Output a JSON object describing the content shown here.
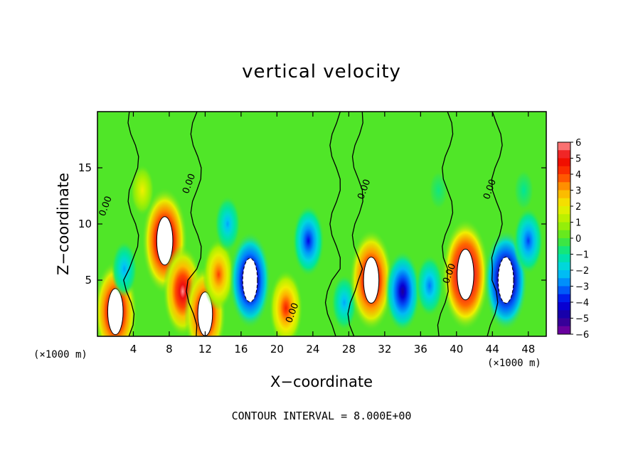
{
  "chart_data": {
    "type": "heatmap",
    "title": "vertical velocity",
    "xlabel": "X−coordinate",
    "ylabel": "Z−coordinate",
    "x_unit": "(×1000 m)",
    "footer": "CONTOUR INTERVAL = 8.000E+00",
    "xlim": [
      0,
      50
    ],
    "ylim": [
      0,
      20
    ],
    "x_ticks": [
      "4",
      "8",
      "12",
      "16",
      "20",
      "24",
      "28",
      "32",
      "36",
      "40",
      "44",
      "48"
    ],
    "y_ticks": [
      "5",
      "10",
      "15"
    ],
    "colorbar": {
      "min": -6,
      "max": 6,
      "ticks": [
        "6",
        "5",
        "4",
        "3",
        "2",
        "1",
        "0",
        "−1",
        "−2",
        "−3",
        "−4",
        "−5",
        "−6"
      ]
    },
    "contour_labels": [
      "0.00",
      "0.00",
      "0.00",
      "0.00",
      "0.00",
      "0.00"
    ],
    "features": [
      {
        "x": 2,
        "z": 2.2,
        "w": 7
      },
      {
        "x": 7.5,
        "z": 8.5,
        "w": 7.5
      },
      {
        "x": 9.5,
        "z": 4,
        "w": 6
      },
      {
        "x": 12,
        "z": 2,
        "w": 6.5
      },
      {
        "x": 13.5,
        "z": 5.5,
        "w": 4
      },
      {
        "x": 17,
        "z": 5,
        "w": -6.5
      },
      {
        "x": 21,
        "z": 2.5,
        "w": 4.5
      },
      {
        "x": 14.5,
        "z": 10,
        "w": -2.5
      },
      {
        "x": 23.5,
        "z": 8.5,
        "w": -4
      },
      {
        "x": 27.5,
        "z": 3,
        "w": -2.5
      },
      {
        "x": 30.5,
        "z": 5,
        "w": 7
      },
      {
        "x": 34,
        "z": 4,
        "w": -5
      },
      {
        "x": 37,
        "z": 4.5,
        "w": -3
      },
      {
        "x": 41,
        "z": 5.5,
        "w": 8
      },
      {
        "x": 45.5,
        "z": 5,
        "w": -7
      },
      {
        "x": 48,
        "z": 8.5,
        "w": -3.5
      },
      {
        "x": 3,
        "z": 6,
        "w": -2.5
      },
      {
        "x": 5,
        "z": 13,
        "w": 2
      },
      {
        "x": 38,
        "z": 13,
        "w": -0.8
      },
      {
        "x": 47.5,
        "z": 13,
        "w": -1
      }
    ]
  }
}
